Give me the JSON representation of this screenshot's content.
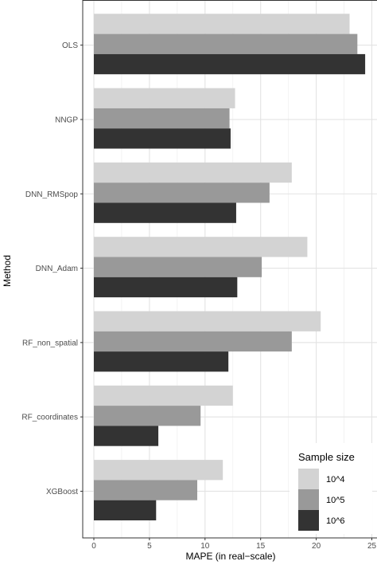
{
  "chart_data": {
    "type": "bar",
    "orientation": "horizontal",
    "xlabel": "MAPE (in real−scale)",
    "ylabel": "Method",
    "xlim": [
      0,
      25
    ],
    "x_ticks": [
      0,
      5,
      10,
      15,
      20,
      25
    ],
    "grid": true,
    "categories": [
      "OLS",
      "NNGP",
      "DNN_RMSpop",
      "DNN_Adam",
      "RF_non_spatial",
      "RF_coordinates",
      "XGBoost"
    ],
    "legend": {
      "title": "Sample size",
      "position": "bottom-right"
    },
    "series": [
      {
        "name": "10^4",
        "color": "#d3d3d3",
        "values": [
          23.0,
          12.7,
          17.8,
          19.2,
          20.4,
          12.5,
          11.6
        ]
      },
      {
        "name": "10^5",
        "color": "#999999",
        "values": [
          23.7,
          12.2,
          15.8,
          15.1,
          17.8,
          9.6,
          9.3
        ]
      },
      {
        "name": "10^6",
        "color": "#333333",
        "values": [
          24.4,
          12.3,
          12.8,
          12.9,
          12.1,
          5.8,
          5.6
        ]
      }
    ]
  }
}
